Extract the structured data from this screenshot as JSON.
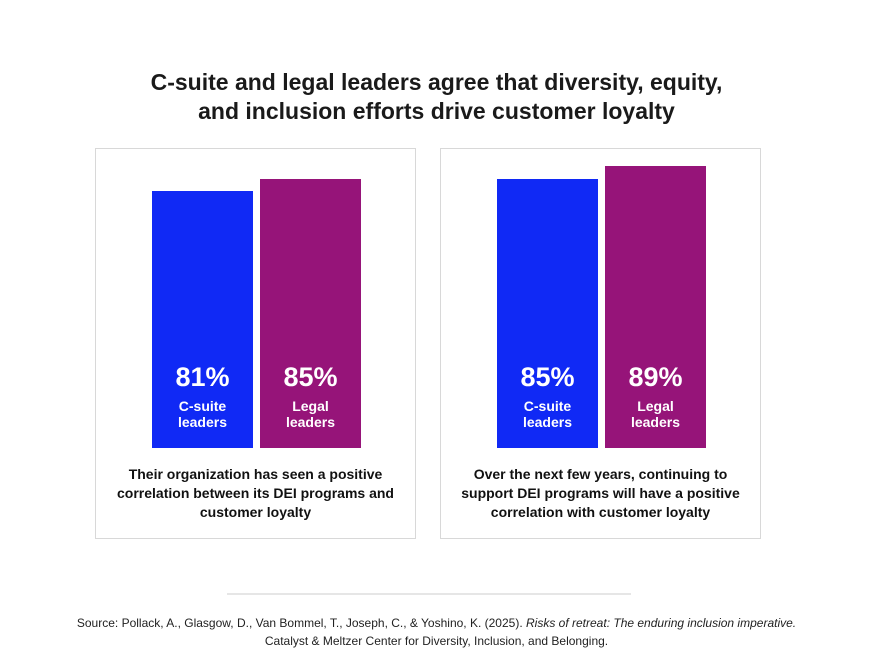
{
  "title_line1": "C-suite and legal leaders agree that diversity, equity,",
  "title_line2": "and inclusion efforts drive customer loyalty",
  "chart_data": [
    {
      "type": "bar",
      "categories": [
        "C-suite leaders",
        "Legal leaders"
      ],
      "values": [
        81,
        85
      ],
      "value_labels": [
        "81%",
        "85%"
      ],
      "bar_labels": [
        [
          "C-suite",
          "leaders"
        ],
        [
          "Legal",
          "leaders"
        ]
      ],
      "caption": "Their organization has seen a positive correlation between its DEI programs and customer loyalty",
      "ylim": [
        0,
        100
      ]
    },
    {
      "type": "bar",
      "categories": [
        "C-suite leaders",
        "Legal leaders"
      ],
      "values": [
        85,
        89
      ],
      "value_labels": [
        "85%",
        "89%"
      ],
      "bar_labels": [
        [
          "C-suite",
          "leaders"
        ],
        [
          "Legal",
          "leaders"
        ]
      ],
      "caption": "Over the next few years, continuing to support DEI programs will have a positive correlation with customer loyalty",
      "ylim": [
        0,
        100
      ]
    }
  ],
  "colors": {
    "c_suite": "#1029f5",
    "legal": "#961479"
  },
  "source": {
    "prefix": "Source: Pollack, A., Glasgow, D., Van Bommel, T., Joseph, C., & Yoshino, K. (2025). ",
    "title": "Risks of retreat: The enduring inclusion imperative.",
    "line2": "Catalyst & Meltzer Center for Diversity, Inclusion, and Belonging."
  }
}
